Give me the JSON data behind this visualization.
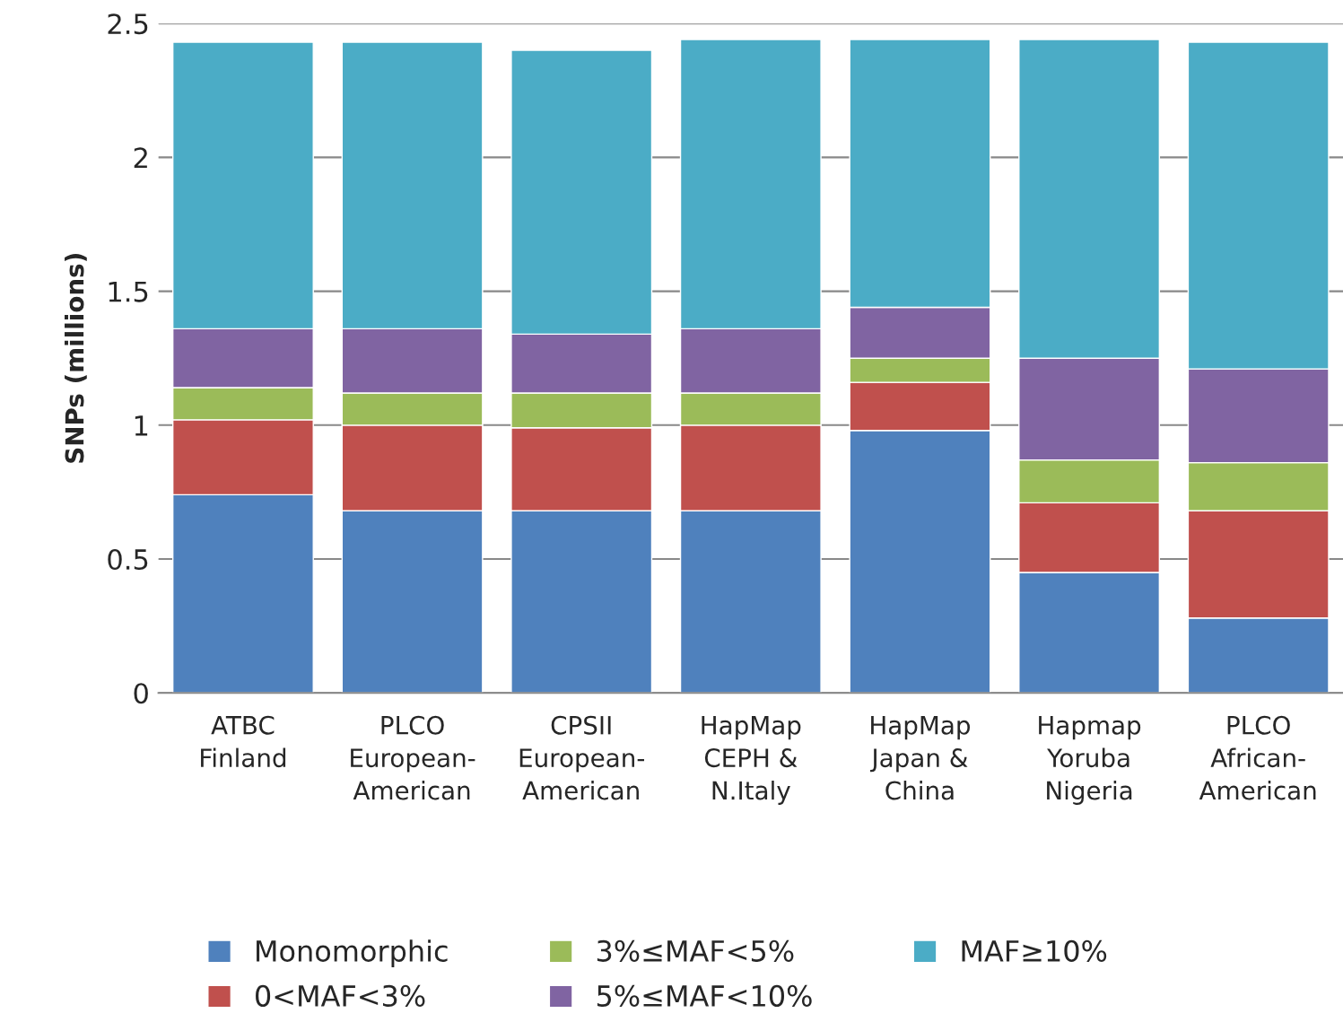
{
  "chart_data": {
    "type": "bar",
    "stacked": true,
    "ylabel": "SNPs (millions)",
    "categories": [
      "ATBC\nFinland",
      "PLCO\nEuropean-\nAmerican",
      "CPSII\nEuropean-\nAmerican",
      "HapMap\nCEPH &\nN.Italy",
      "HapMap\nJapan &\nChina",
      "Hapmap\nYoruba\nNigeria",
      "PLCO\nAfrican-\nAmerican"
    ],
    "series": [
      {
        "name": "Monomorphic",
        "color": "#4f81bd",
        "values": [
          0.74,
          0.68,
          0.68,
          0.68,
          0.98,
          0.45,
          0.28
        ]
      },
      {
        "name": "0<MAF<3%",
        "color": "#c0504d",
        "values": [
          0.28,
          0.32,
          0.31,
          0.32,
          0.18,
          0.26,
          0.4
        ]
      },
      {
        "name": "3%≤MAF<5%",
        "color": "#9bbb59",
        "values": [
          0.12,
          0.12,
          0.13,
          0.12,
          0.09,
          0.16,
          0.18
        ]
      },
      {
        "name": "5%≤MAF<10%",
        "color": "#8064a2",
        "values": [
          0.22,
          0.24,
          0.22,
          0.24,
          0.19,
          0.38,
          0.35
        ]
      },
      {
        "name": "MAF≥10%",
        "color": "#4bacc6",
        "values": [
          1.07,
          1.07,
          1.06,
          1.08,
          1.0,
          1.19,
          1.22
        ]
      }
    ],
    "ylim": [
      0,
      2.5
    ],
    "yticks": [
      0,
      0.5,
      1,
      1.5,
      2,
      2.5
    ],
    "grid": "y",
    "legend": "bottom"
  }
}
